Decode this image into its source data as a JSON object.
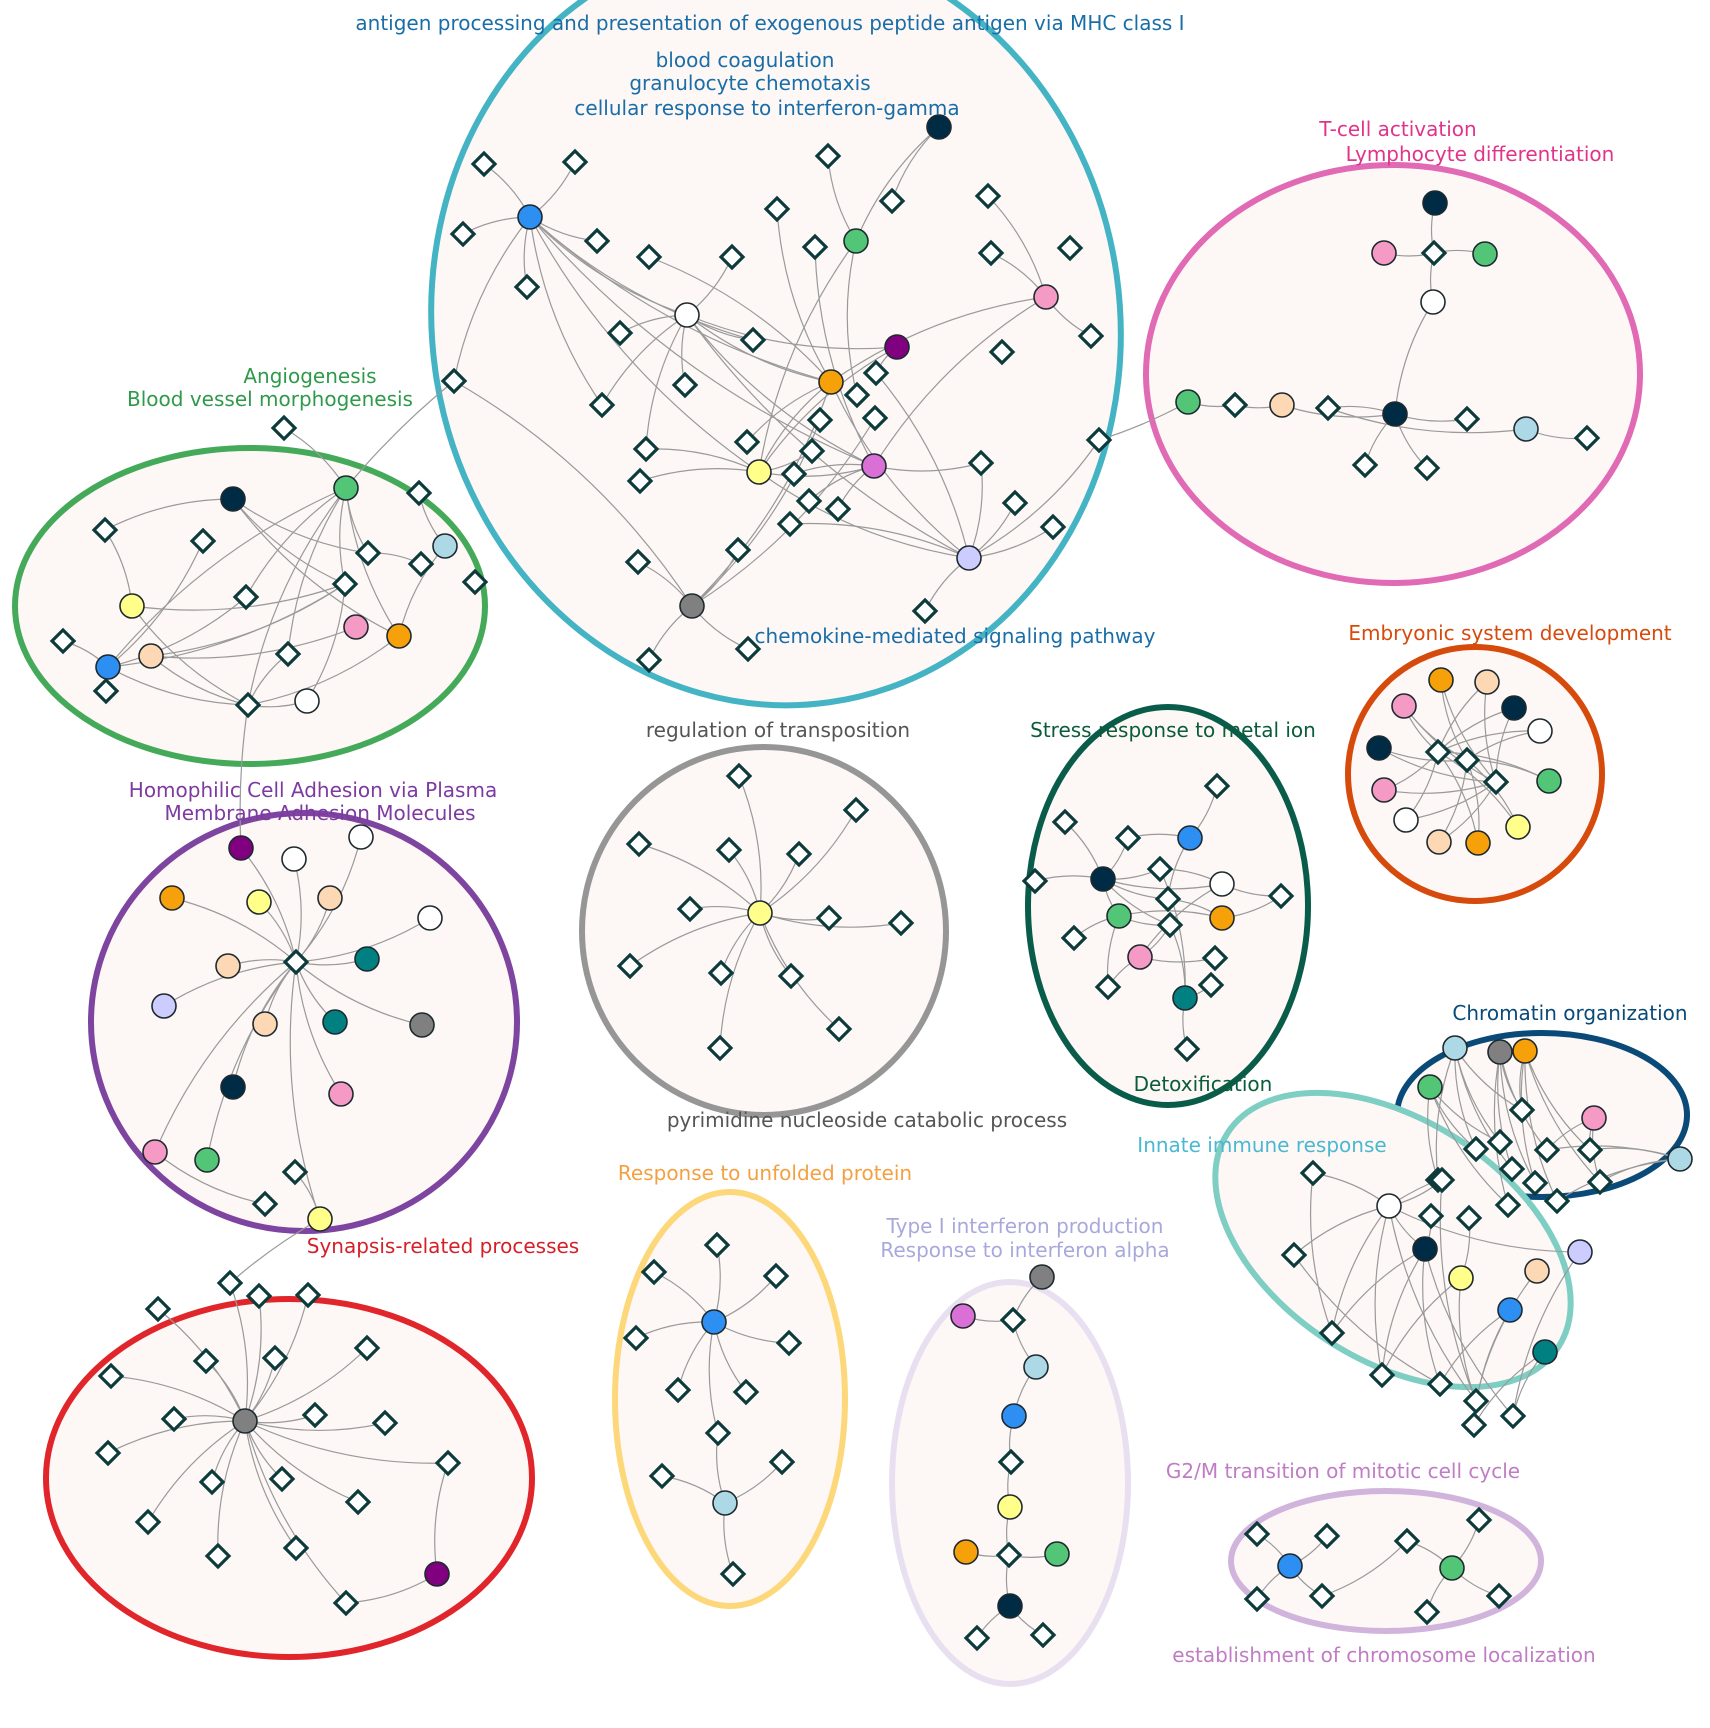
{
  "clusters": [
    {
      "id": "immune",
      "color": "#44b4c4",
      "labels": [
        "antigen processing and presentation of exogenous peptide antigen via MHC class I",
        "blood coagulation",
        "granulocyte chemotaxis",
        "cellular response to interferon-gamma",
        "chemokine-mediated signaling pathway"
      ],
      "label_color": "#1a6ea8"
    },
    {
      "id": "tcell",
      "color": "#e06ab4",
      "labels": [
        "T-cell activation",
        "Lymphocyte differentiation"
      ],
      "label_color": "#e0348a"
    },
    {
      "id": "angio",
      "color": "#44aa5a",
      "labels": [
        "Angiogenesis",
        "Blood vessel morphogenesis"
      ],
      "label_color": "#2e9a4a"
    },
    {
      "id": "embryo",
      "color": "#d64a0c",
      "labels": [
        "Embryonic system development"
      ],
      "label_color": "#d64a0c"
    },
    {
      "id": "transposition",
      "color": "#969696",
      "labels": [
        "regulation of transposition",
        "pyrimidine nucleoside catabolic process"
      ],
      "label_color": "#555555"
    },
    {
      "id": "metal",
      "color": "#0a5c4a",
      "labels": [
        "Stress response to metal ion",
        "Detoxification"
      ],
      "label_color": "#0a5c3a"
    },
    {
      "id": "adhesion",
      "color": "#7d44a0",
      "labels": [
        "Homophilic Cell Adhesion via Plasma",
        "Membrane Adhesion Molecules"
      ],
      "label_color": "#7d3aa0"
    },
    {
      "id": "chromatin",
      "color": "#0a4a78",
      "labels": [
        "Chromatin organization"
      ],
      "label_color": "#0a4a78"
    },
    {
      "id": "innate",
      "color": "#7ecec4",
      "labels": [
        "Innate immune response"
      ],
      "label_color": "#4ab8d0"
    },
    {
      "id": "synapsis",
      "color": "#e0262a",
      "labels": [
        "Synapsis-related processes"
      ],
      "label_color": "#d42028"
    },
    {
      "id": "unfolded",
      "color": "#fdd87a",
      "labels": [
        "Response to unfolded protein"
      ],
      "label_color": "#f4a040"
    },
    {
      "id": "interferon",
      "color": "#e8e0f0",
      "labels": [
        "Type I interferon production",
        "Response to interferon alpha"
      ],
      "label_color": "#a8a8dc"
    },
    {
      "id": "g2m",
      "color": "#d0b4dc",
      "labels": [
        "G2/M transition of mitotic cell cycle",
        "establishment of chromosome localization"
      ],
      "label_color": "#c07cc4"
    }
  ],
  "node_colors": {
    "navy": "#002b45",
    "blue": "#2e8ff2",
    "green": "#52c576",
    "pink": "#f49ac4",
    "white": "#ffffff",
    "orange": "#f7a10a",
    "yellow": "#ffff8a",
    "purple": "#800080",
    "violet": "#da70d6",
    "lavender": "#ccccff",
    "grey": "#808080",
    "peach": "#fcd8b4",
    "lightblue": "#add8e6",
    "teal": "#008080"
  }
}
